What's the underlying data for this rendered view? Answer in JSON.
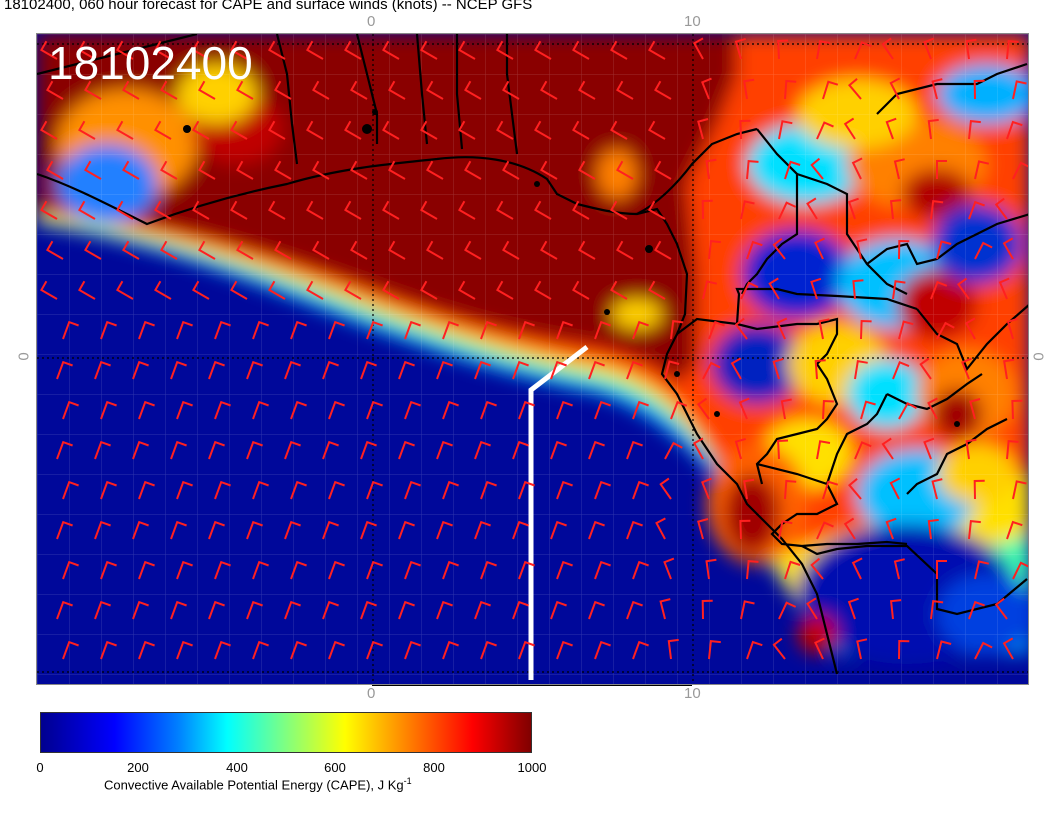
{
  "title": "18102400, 060 hour forecast for CAPE and surface winds (knots) -- NCEP GFS",
  "stamp": "18102400",
  "axes": {
    "top_ticks": [
      "0",
      "10"
    ],
    "bottom_ticks": [
      "0",
      "10"
    ],
    "left_tick": "0",
    "right_tick": "0"
  },
  "colorbar": {
    "ticks": [
      "0",
      "200",
      "400",
      "600",
      "800",
      "1000"
    ],
    "label": "Convective Available Potential Energy (CAPE), J Kg",
    "label_sup": "-1",
    "colors": [
      "#00008f",
      "#0000ff",
      "#0080ff",
      "#00ffff",
      "#80ff80",
      "#ffff00",
      "#ff8000",
      "#ff0000",
      "#800000"
    ]
  },
  "colors": {
    "barb": "#ff2020",
    "coast": "#000000",
    "track": "#ffffff"
  }
}
